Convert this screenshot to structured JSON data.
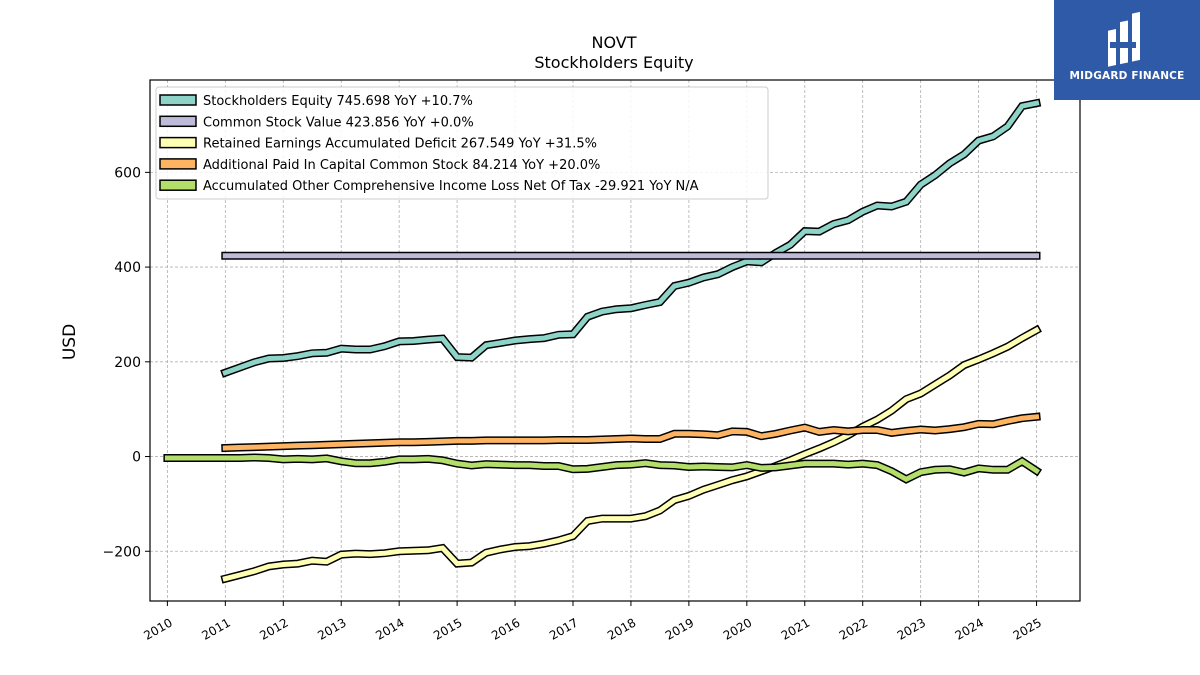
{
  "logo": {
    "name": "MIDGARD FINANCE",
    "color": "#2f5aa8"
  },
  "chart_data": {
    "type": "line",
    "title": "NOVT",
    "subtitle": "Stockholders  Equity",
    "xlabel": "",
    "ylabel": "USD",
    "xlim": [
      2009.7,
      2025.75
    ],
    "ylim": [
      -305,
      795
    ],
    "y_ticks": [
      -200,
      0,
      200,
      400,
      600
    ],
    "y_tick_labels": [
      "−200",
      "0",
      "200",
      "400",
      "600"
    ],
    "x_ticks": [
      2010,
      2011,
      2012,
      2013,
      2014,
      2015,
      2016,
      2017,
      2018,
      2019,
      2020,
      2021,
      2022,
      2023,
      2024,
      2025
    ],
    "x_tick_labels": [
      "2010",
      "2011",
      "2012",
      "2013",
      "2014",
      "2015",
      "2016",
      "2017",
      "2018",
      "2019",
      "2020",
      "2021",
      "2022",
      "2023",
      "2024",
      "2025"
    ],
    "grid": true,
    "legend_position": "top-left",
    "series": [
      {
        "name": "Stockholders Equity",
        "legend": "Stockholders Equity  745.698 YoY +10.7%",
        "color": "#8dd3c7",
        "x": [
          2011.0,
          2011.25,
          2011.5,
          2011.75,
          2012.0,
          2012.25,
          2012.5,
          2012.75,
          2013.0,
          2013.25,
          2013.5,
          2013.75,
          2014.0,
          2014.25,
          2014.5,
          2014.75,
          2015.0,
          2015.25,
          2015.5,
          2015.75,
          2016.0,
          2016.25,
          2016.5,
          2016.75,
          2017.0,
          2017.25,
          2017.5,
          2017.75,
          2018.0,
          2018.25,
          2018.5,
          2018.75,
          2019.0,
          2019.25,
          2019.5,
          2019.75,
          2020.0,
          2020.25,
          2020.5,
          2020.75,
          2021.0,
          2021.25,
          2021.5,
          2021.75,
          2022.0,
          2022.25,
          2022.5,
          2022.75,
          2023.0,
          2023.25,
          2023.5,
          2023.75,
          2024.0,
          2024.25,
          2024.5,
          2024.75,
          2025.0
        ],
        "values": [
          177,
          188,
          199,
          207,
          208,
          212,
          218,
          219,
          228,
          226,
          226,
          233,
          243,
          244,
          247,
          249,
          210,
          209,
          235,
          240,
          245,
          248,
          250,
          257,
          258,
          295,
          306,
          311,
          313,
          320,
          326,
          360,
          367,
          378,
          385,
          400,
          412,
          410,
          430,
          447,
          476,
          475,
          491,
          499,
          517,
          530,
          528,
          538,
          574,
          594,
          619,
          638,
          667,
          676,
          697,
          740,
          746
        ]
      },
      {
        "name": "Common Stock Value",
        "legend": "Common Stock Value  423.856 YoY +0.0%",
        "color": "#bebada",
        "x": [
          2011.0,
          2025.0
        ],
        "values": [
          423.856,
          423.856
        ]
      },
      {
        "name": "Retained Earnings Accumulated Deficit",
        "legend": "Retained Earnings Accumulated Deficit  267.549 YoY +31.5%",
        "color": "#ffffb3",
        "x": [
          2011.0,
          2011.25,
          2011.5,
          2011.75,
          2012.0,
          2012.25,
          2012.5,
          2012.75,
          2013.0,
          2013.25,
          2013.5,
          2013.75,
          2014.0,
          2014.25,
          2014.5,
          2014.75,
          2015.0,
          2015.25,
          2015.5,
          2015.75,
          2016.0,
          2016.25,
          2016.5,
          2016.75,
          2017.0,
          2017.25,
          2017.5,
          2017.75,
          2018.0,
          2018.25,
          2018.5,
          2018.75,
          2019.0,
          2019.25,
          2019.5,
          2019.75,
          2020.0,
          2020.25,
          2020.5,
          2020.75,
          2021.0,
          2021.25,
          2021.5,
          2021.75,
          2022.0,
          2022.25,
          2022.5,
          2022.75,
          2023.0,
          2023.25,
          2023.5,
          2023.75,
          2024.0,
          2024.25,
          2024.5,
          2024.75,
          2025.0
        ],
        "values": [
          -258,
          -250,
          -242,
          -232,
          -228,
          -226,
          -220,
          -222,
          -207,
          -205,
          -206,
          -204,
          -200,
          -199,
          -198,
          -193,
          -226,
          -224,
          -203,
          -196,
          -191,
          -189,
          -184,
          -177,
          -168,
          -136,
          -131,
          -131,
          -131,
          -126,
          -114,
          -92,
          -83,
          -70,
          -60,
          -50,
          -42,
          -31,
          -20,
          -8,
          5,
          17,
          30,
          45,
          63,
          78,
          97,
          121,
          133,
          152,
          171,
          193,
          205,
          218,
          232,
          250,
          267
        ]
      },
      {
        "name": "Additional Paid In Capital Common Stock",
        "legend": "Additional Paid In Capital Common Stock  84.214 YoY +20.0%",
        "color": "#fdb462",
        "x": [
          2011.0,
          2011.25,
          2011.5,
          2011.75,
          2012.0,
          2012.25,
          2012.5,
          2012.75,
          2013.0,
          2013.25,
          2013.5,
          2013.75,
          2014.0,
          2014.25,
          2014.5,
          2014.75,
          2015.0,
          2015.25,
          2015.5,
          2015.75,
          2016.0,
          2016.25,
          2016.5,
          2016.75,
          2017.0,
          2017.25,
          2017.5,
          2017.75,
          2018.0,
          2018.25,
          2018.5,
          2018.75,
          2019.0,
          2019.25,
          2019.5,
          2019.75,
          2020.0,
          2020.25,
          2020.5,
          2020.75,
          2021.0,
          2021.25,
          2021.5,
          2021.75,
          2022.0,
          2022.25,
          2022.5,
          2022.75,
          2023.0,
          2023.25,
          2023.5,
          2023.75,
          2024.0,
          2024.25,
          2024.5,
          2024.75,
          2025.0
        ],
        "values": [
          18,
          19,
          20,
          21,
          22,
          23,
          24,
          25,
          26,
          27,
          28,
          29,
          30,
          30,
          31,
          32,
          33,
          33,
          34,
          34,
          34,
          34,
          34,
          35,
          35,
          35,
          36,
          37,
          38,
          37,
          37,
          48,
          48,
          47,
          45,
          53,
          52,
          43,
          48,
          55,
          61,
          52,
          56,
          53,
          56,
          56,
          50,
          54,
          57,
          55,
          58,
          62,
          69,
          68,
          75,
          81,
          84
        ]
      },
      {
        "name": "Accumulated Other Comprehensive Income Loss Net Of Tax",
        "legend": "Accumulated Other Comprehensive Income Loss Net Of Tax  -29.921 YoY N/A",
        "color": "#b3de69",
        "x": [
          2010.0,
          2010.25,
          2010.5,
          2010.75,
          2011.0,
          2011.25,
          2011.5,
          2011.75,
          2012.0,
          2012.25,
          2012.5,
          2012.75,
          2013.0,
          2013.25,
          2013.5,
          2013.75,
          2014.0,
          2014.25,
          2014.5,
          2014.75,
          2015.0,
          2015.25,
          2015.5,
          2015.75,
          2016.0,
          2016.25,
          2016.5,
          2016.75,
          2017.0,
          2017.25,
          2017.5,
          2017.75,
          2018.0,
          2018.25,
          2018.5,
          2018.75,
          2019.0,
          2019.25,
          2019.5,
          2019.75,
          2020.0,
          2020.25,
          2020.5,
          2020.75,
          2021.0,
          2021.25,
          2021.5,
          2021.75,
          2022.0,
          2022.25,
          2022.5,
          2022.75,
          2023.0,
          2023.25,
          2023.5,
          2023.75,
          2024.0,
          2024.25,
          2024.5,
          2024.75,
          2025.0
        ],
        "values": [
          -3,
          -3,
          -3,
          -3,
          -3,
          -3,
          -2,
          -3,
          -6,
          -5,
          -6,
          -4,
          -10,
          -14,
          -14,
          -11,
          -6,
          -6,
          -5,
          -8,
          -15,
          -19,
          -16,
          -17,
          -18,
          -18,
          -20,
          -20,
          -27,
          -26,
          -22,
          -18,
          -17,
          -14,
          -18,
          -19,
          -22,
          -21,
          -22,
          -23,
          -18,
          -24,
          -23,
          -19,
          -15,
          -15,
          -15,
          -17,
          -15,
          -18,
          -31,
          -48,
          -33,
          -28,
          -27,
          -34,
          -25,
          -28,
          -28,
          -10,
          -30
        ]
      }
    ]
  }
}
